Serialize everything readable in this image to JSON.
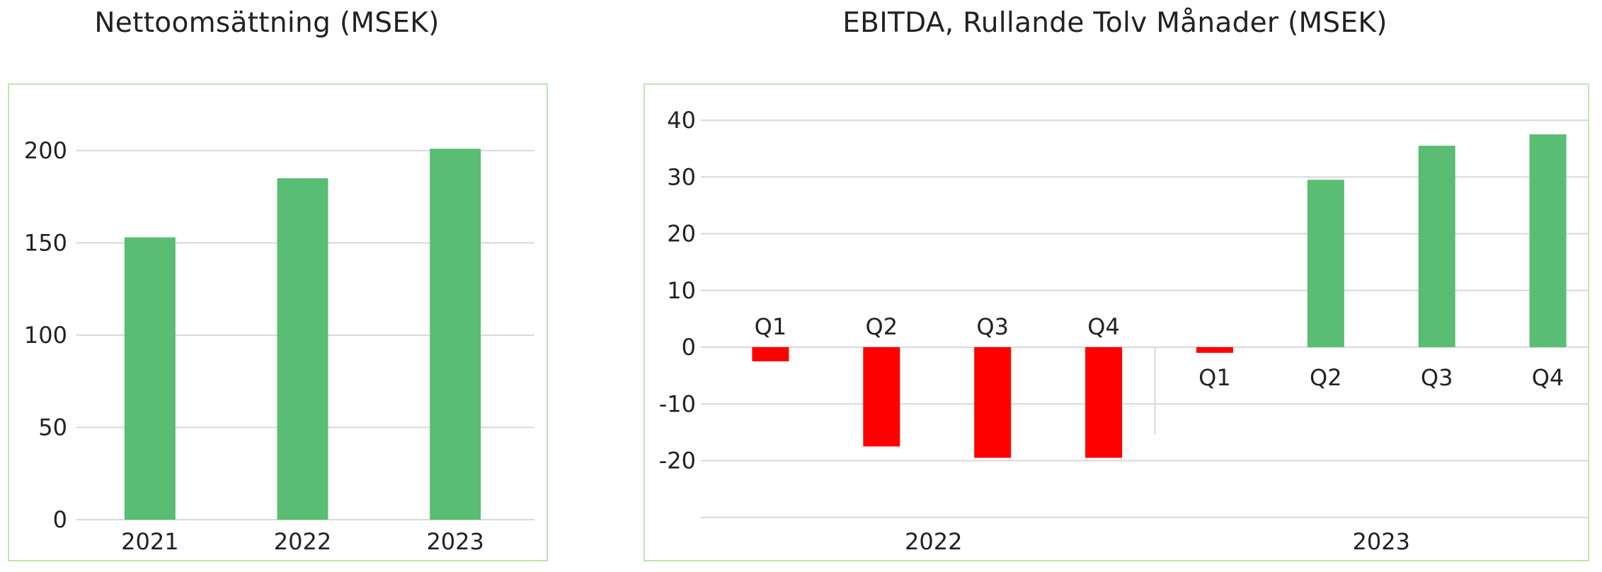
{
  "colors": {
    "positive": "#59bd73",
    "negative": "#ff0000",
    "gridline": "#d9d9d9",
    "border": "#b8eaa7"
  },
  "chart_data": [
    {
      "type": "bar",
      "title": "Nettoomsättning (MSEK)",
      "categories": [
        "2021",
        "2022",
        "2023"
      ],
      "values": [
        153,
        185,
        201
      ],
      "ylim": [
        0,
        200
      ],
      "yticks": [
        "0",
        "50",
        "100",
        "150",
        "200"
      ],
      "grid": true,
      "legend": "none"
    },
    {
      "type": "bar",
      "title": "EBITDA, Rullande Tolv Månader (MSEK)",
      "groups": [
        {
          "label": "2022",
          "categories": [
            "Q1",
            "Q2",
            "Q3",
            "Q4"
          ],
          "values": [
            -2.5,
            -17.5,
            -19.5,
            -19.5
          ]
        },
        {
          "label": "2023",
          "categories": [
            "Q1",
            "Q2",
            "Q3",
            "Q4"
          ],
          "values": [
            -1,
            29.5,
            35.5,
            37.5
          ]
        }
      ],
      "ylim": [
        -20,
        40
      ],
      "yticks": [
        "-20",
        "-10",
        "0",
        "10",
        "20",
        "30",
        "40"
      ],
      "grid": true,
      "legend": "none"
    }
  ]
}
